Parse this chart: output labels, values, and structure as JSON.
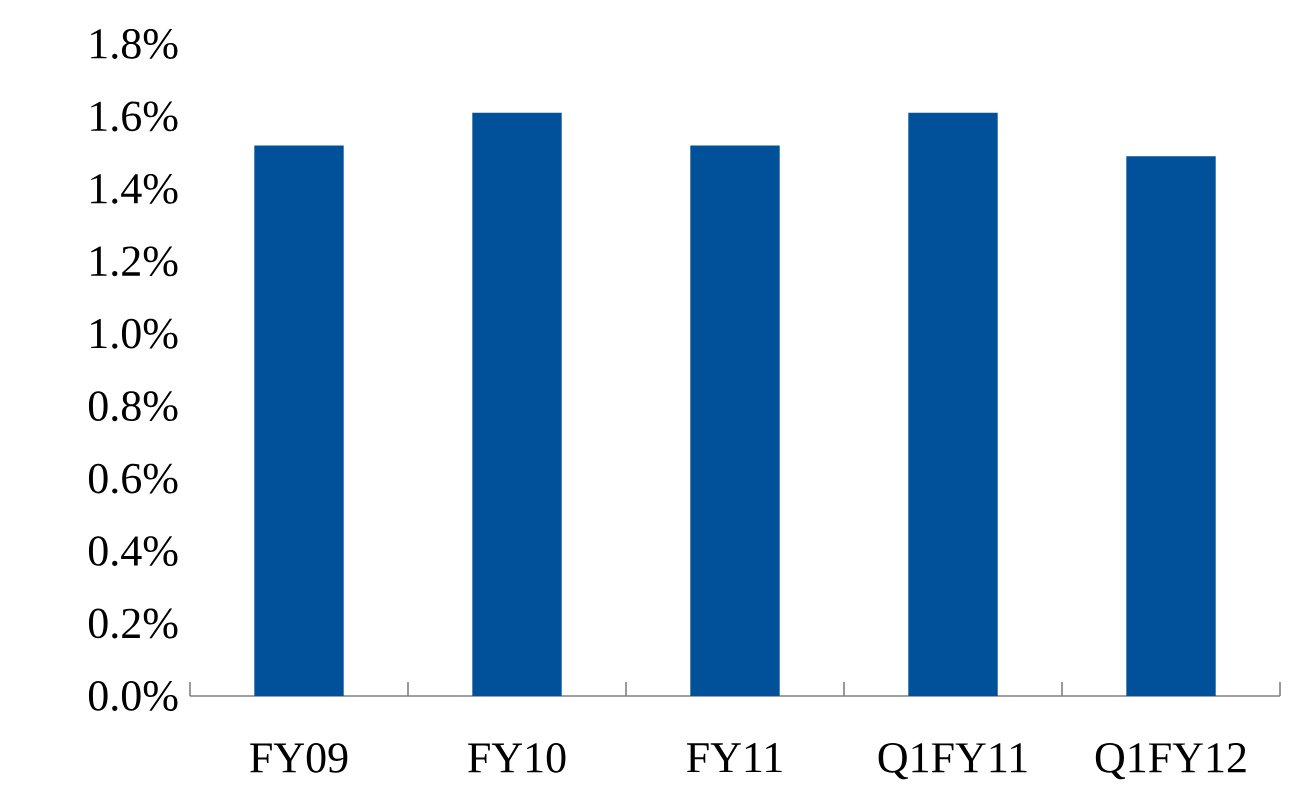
{
  "chart_data": {
    "type": "bar",
    "categories": [
      "FY09",
      "FY10",
      "FY11",
      "Q1FY11",
      "Q1FY12"
    ],
    "values": [
      1.52,
      1.61,
      1.52,
      1.61,
      1.49
    ],
    "color": "#00509a",
    "ylim": [
      0,
      1.8
    ],
    "yticks": [
      {
        "value": 0,
        "label": "0.0%"
      },
      {
        "value": 0.2,
        "label": "0.2%"
      },
      {
        "value": 0.4,
        "label": "0.4%"
      },
      {
        "value": 0.6,
        "label": "0.6%"
      },
      {
        "value": 0.8,
        "label": "0.8%"
      },
      {
        "value": 1.0,
        "label": "1.0%"
      },
      {
        "value": 1.2,
        "label": "1.2%"
      },
      {
        "value": 1.4,
        "label": "1.4%"
      },
      {
        "value": 1.6,
        "label": "1.6%"
      },
      {
        "value": 1.8,
        "label": "1.8%"
      }
    ],
    "grid": false
  }
}
